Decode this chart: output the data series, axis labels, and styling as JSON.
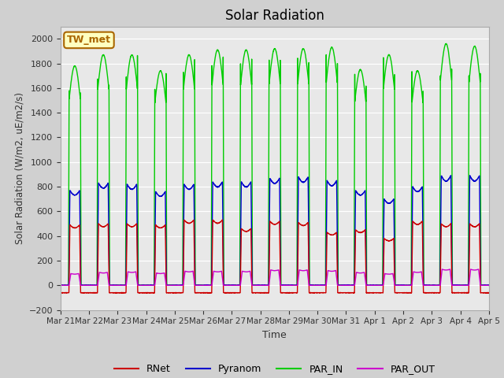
{
  "title": "Solar Radiation",
  "ylabel": "Solar Radiation (W/m2, uE/m2/s)",
  "xlabel": "Time",
  "ylim": [
    -200,
    2100
  ],
  "yticks": [
    -200,
    0,
    200,
    400,
    600,
    800,
    1000,
    1200,
    1400,
    1600,
    1800,
    2000
  ],
  "fig_bg_color": "#d0d0d0",
  "plot_bg_color": "#e8e8e8",
  "colors": {
    "RNet": "#cc0000",
    "Pyranom": "#0000cc",
    "PAR_IN": "#00cc00",
    "PAR_OUT": "#cc00cc"
  },
  "station_label": "TW_met",
  "station_box_color": "#ffffc0",
  "station_border_color": "#aa6600",
  "n_days": 15,
  "x_tick_labels": [
    "Mar 21",
    "Mar 22",
    "Mar 23",
    "Mar 24",
    "Mar 25",
    "Mar 26",
    "Mar 27",
    "Mar 28",
    "Mar 29",
    "Mar 30",
    "Mar 31",
    "Apr 1",
    "Apr 2",
    "Apr 3",
    "Apr 4",
    "Apr 5"
  ],
  "PAR_IN_peaks": [
    1780,
    1870,
    1870,
    1740,
    1870,
    1910,
    1910,
    1920,
    1920,
    1930,
    1750,
    1870,
    1740,
    1960,
    1940
  ],
  "Pyranom_peaks": [
    770,
    830,
    820,
    760,
    820,
    840,
    840,
    870,
    880,
    850,
    770,
    700,
    800,
    890,
    890
  ],
  "RNet_peaks": [
    490,
    500,
    500,
    490,
    530,
    530,
    460,
    520,
    510,
    430,
    450,
    380,
    520,
    500,
    500
  ],
  "PAR_OUT_peaks": [
    95,
    105,
    110,
    100,
    115,
    115,
    115,
    125,
    125,
    120,
    105,
    95,
    110,
    130,
    130
  ],
  "RNet_night": -60,
  "line_width": 1.0,
  "pts_per_day": 288
}
